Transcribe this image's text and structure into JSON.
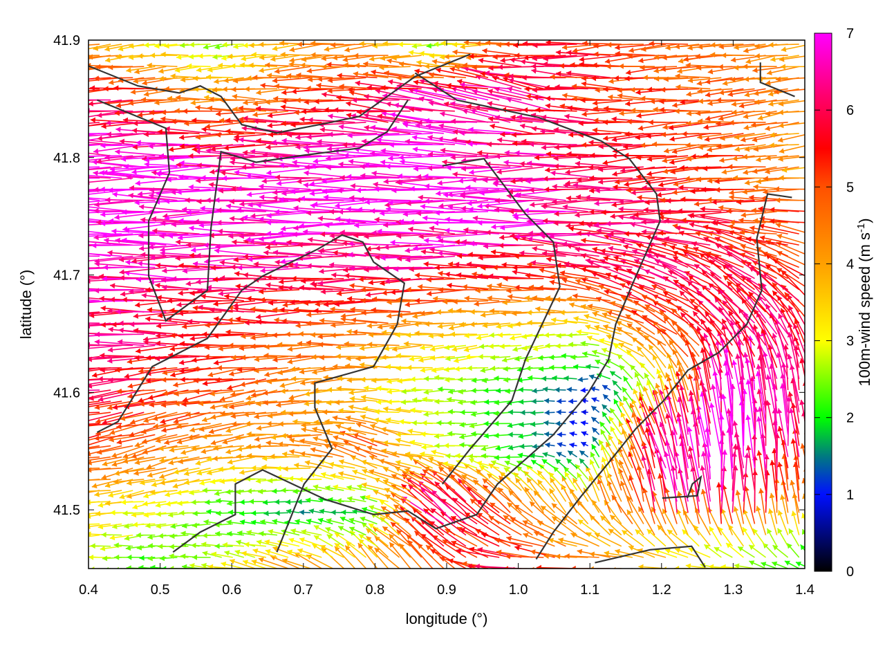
{
  "chart_data": {
    "type": "vector-field",
    "title": "",
    "xlabel": "longitude (°)",
    "ylabel": "latitude (°)",
    "colorbar": {
      "label_main": "100m-wind speed (m s",
      "label_sup": "-1",
      "label_end": ")",
      "range": [
        0,
        7
      ],
      "ticks": [
        "0",
        "1",
        "2",
        "3",
        "4",
        "5",
        "6",
        "7"
      ],
      "palette": [
        {
          "v": 0,
          "c": "#000000"
        },
        {
          "v": 1,
          "c": "#0010ff"
        },
        {
          "v": 1.5,
          "c": "#007a80"
        },
        {
          "v": 2,
          "c": "#00ff00"
        },
        {
          "v": 3,
          "c": "#ffff00"
        },
        {
          "v": 4,
          "c": "#ffa000"
        },
        {
          "v": 5,
          "c": "#ff5000"
        },
        {
          "v": 5.5,
          "c": "#ff0000"
        },
        {
          "v": 6.2,
          "c": "#ff0070"
        },
        {
          "v": 7,
          "c": "#ff00ff"
        }
      ]
    },
    "xlim": [
      0.4,
      1.4
    ],
    "ylim": [
      41.45,
      41.9
    ],
    "xticks": [
      "0.4",
      "0.5",
      "0.6",
      "0.7",
      "0.8",
      "0.9",
      "1.0",
      "1.1",
      "1.2",
      "1.3",
      "1.4"
    ],
    "yticks": [
      "41.5",
      "41.6",
      "41.7",
      "41.8",
      "41.9"
    ],
    "grid_lon": [
      0.4,
      0.5,
      0.6,
      0.7,
      0.8,
      0.9,
      1.0,
      1.1,
      1.2,
      1.3,
      1.4
    ],
    "grid_lat": [
      41.9,
      41.85,
      41.8,
      41.75,
      41.7,
      41.65,
      41.6,
      41.55,
      41.5,
      41.45
    ],
    "speed_ms": [
      [
        4.5,
        3,
        2.5,
        4,
        4.5,
        2,
        5,
        5.5,
        5,
        4.5,
        4
      ],
      [
        6,
        5.5,
        4,
        5,
        5.5,
        6.5,
        6.5,
        5.5,
        5,
        5,
        4.5
      ],
      [
        7,
        7,
        6.5,
        6.5,
        7,
        7,
        6.5,
        6,
        5.5,
        5,
        4
      ],
      [
        7,
        7,
        7,
        7,
        7,
        7,
        7,
        6.5,
        6,
        5.5,
        5
      ],
      [
        7,
        6.5,
        6,
        6,
        6,
        6,
        5.5,
        5.5,
        6,
        6,
        5.5
      ],
      [
        6.5,
        6,
        5.5,
        5,
        4.5,
        3.5,
        3,
        3,
        5,
        6,
        6
      ],
      [
        6,
        5.5,
        5,
        4.5,
        3.5,
        2.5,
        2,
        1,
        3,
        7,
        6
      ],
      [
        5,
        4.5,
        4,
        4,
        5,
        3,
        2,
        1,
        6.5,
        7,
        6
      ],
      [
        3.5,
        3,
        2,
        1.5,
        2,
        6.5,
        5,
        4,
        6,
        6.5,
        4.5
      ],
      [
        3,
        2,
        3,
        4,
        4,
        5,
        6,
        5,
        4,
        3,
        2
      ]
    ],
    "direction_deg": [
      [
        185,
        185,
        185,
        185,
        185,
        185,
        185,
        185,
        185,
        185,
        185
      ],
      [
        185,
        185,
        180,
        180,
        175,
        170,
        165,
        175,
        180,
        185,
        190
      ],
      [
        180,
        180,
        180,
        180,
        180,
        180,
        180,
        180,
        185,
        185,
        185
      ],
      [
        180,
        180,
        180,
        180,
        180,
        180,
        180,
        180,
        180,
        180,
        180
      ],
      [
        180,
        180,
        180,
        180,
        180,
        180,
        175,
        170,
        160,
        150,
        150
      ],
      [
        180,
        180,
        180,
        180,
        180,
        185,
        190,
        180,
        150,
        130,
        120
      ],
      [
        185,
        190,
        190,
        190,
        180,
        180,
        180,
        180,
        110,
        95,
        100
      ],
      [
        190,
        195,
        190,
        180,
        160,
        180,
        190,
        150,
        110,
        95,
        95
      ],
      [
        180,
        190,
        180,
        180,
        175,
        140,
        130,
        120,
        100,
        90,
        100
      ],
      [
        180,
        180,
        170,
        160,
        130,
        140,
        180,
        180,
        180,
        170,
        150
      ]
    ],
    "coastlines": [
      [
        [
          0.4,
          41.878
        ],
        [
          0.469,
          41.861
        ],
        [
          0.527,
          41.855
        ],
        [
          0.556,
          41.861
        ],
        [
          0.585,
          41.852
        ],
        [
          0.614,
          41.828
        ],
        [
          0.663,
          41.821
        ],
        [
          0.73,
          41.829
        ],
        [
          0.778,
          41.835
        ],
        [
          0.817,
          41.852
        ],
        [
          0.856,
          41.869
        ],
        [
          0.933,
          41.888
        ]
      ],
      [
        [
          0.412,
          41.849
        ],
        [
          0.508,
          41.825
        ],
        [
          0.513,
          41.787
        ],
        [
          0.484,
          41.746
        ],
        [
          0.484,
          41.699
        ],
        [
          0.508,
          41.661
        ],
        [
          0.566,
          41.687
        ],
        [
          0.571,
          41.74
        ],
        [
          0.585,
          41.805
        ],
        [
          0.634,
          41.796
        ],
        [
          0.701,
          41.802
        ],
        [
          0.778,
          41.808
        ],
        [
          0.817,
          41.822
        ],
        [
          0.846,
          41.849
        ]
      ],
      [
        [
          0.412,
          41.566
        ],
        [
          0.441,
          41.575
        ],
        [
          0.489,
          41.622
        ],
        [
          0.566,
          41.646
        ],
        [
          0.614,
          41.687
        ],
        [
          0.643,
          41.699
        ],
        [
          0.72,
          41.722
        ],
        [
          0.754,
          41.734
        ],
        [
          0.783,
          41.728
        ],
        [
          0.798,
          41.711
        ],
        [
          0.841,
          41.693
        ],
        [
          0.831,
          41.658
        ],
        [
          0.798,
          41.622
        ],
        [
          0.716,
          41.608
        ],
        [
          0.716,
          41.587
        ],
        [
          0.74,
          41.552
        ],
        [
          0.701,
          41.522
        ],
        [
          0.663,
          41.464
        ]
      ],
      [
        [
          0.856,
          41.872
        ],
        [
          0.914,
          41.849
        ],
        [
          1.029,
          41.834
        ],
        [
          1.116,
          41.814
        ],
        [
          1.155,
          41.799
        ],
        [
          1.193,
          41.769
        ],
        [
          1.198,
          41.746
        ],
        [
          1.16,
          41.693
        ],
        [
          1.136,
          41.658
        ],
        [
          1.126,
          41.628
        ],
        [
          1.097,
          41.599
        ],
        [
          1.049,
          41.564
        ],
        [
          0.971,
          41.522
        ],
        [
          0.942,
          41.496
        ],
        [
          0.885,
          41.484
        ],
        [
          0.846,
          41.499
        ],
        [
          0.798,
          41.496
        ],
        [
          0.73,
          41.509
        ],
        [
          0.643,
          41.534
        ],
        [
          0.605,
          41.522
        ],
        [
          0.605,
          41.496
        ],
        [
          0.556,
          41.481
        ],
        [
          0.518,
          41.464
        ]
      ],
      [
        [
          0.894,
          41.793
        ],
        [
          0.952,
          41.799
        ],
        [
          1.01,
          41.752
        ],
        [
          1.049,
          41.728
        ],
        [
          1.058,
          41.69
        ],
        [
          1.01,
          41.628
        ],
        [
          0.991,
          41.593
        ],
        [
          0.933,
          41.552
        ],
        [
          0.894,
          41.522
        ]
      ],
      [
        [
          1.382,
          41.766
        ],
        [
          1.348,
          41.769
        ],
        [
          1.333,
          41.731
        ],
        [
          1.34,
          41.687
        ],
        [
          1.319,
          41.658
        ],
        [
          1.28,
          41.634
        ],
        [
          1.237,
          41.619
        ],
        [
          1.203,
          41.593
        ],
        [
          1.164,
          41.569
        ],
        [
          1.126,
          41.54
        ],
        [
          1.087,
          41.511
        ],
        [
          1.049,
          41.481
        ],
        [
          1.025,
          41.458
        ]
      ],
      [
        [
          1.107,
          41.455
        ],
        [
          1.184,
          41.466
        ],
        [
          1.242,
          41.469
        ],
        [
          1.261,
          41.451
        ]
      ],
      [
        [
          1.338,
          41.881
        ],
        [
          1.338,
          41.864
        ],
        [
          1.386,
          41.852
        ]
      ],
      [
        [
          1.201,
          41.51
        ],
        [
          1.25,
          41.512
        ],
        [
          1.255,
          41.528
        ],
        [
          1.243,
          41.522
        ],
        [
          1.236,
          41.51
        ]
      ]
    ]
  }
}
